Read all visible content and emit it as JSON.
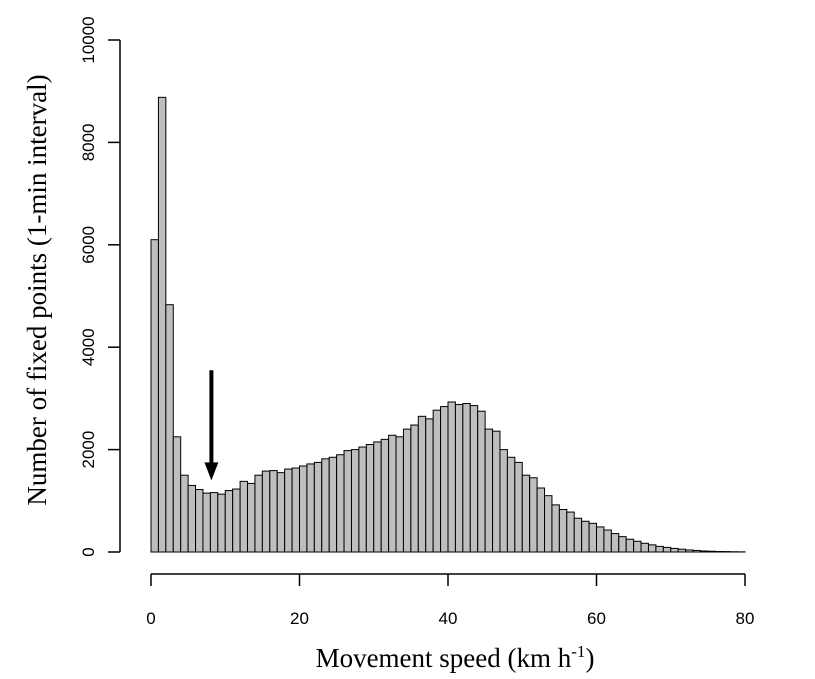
{
  "chart_data": {
    "type": "bar",
    "subtype": "histogram",
    "xlabel_main": "Movement speed (km h",
    "xlabel_sup": "-1",
    "xlabel_end": ")",
    "ylabel": "Number of fixed points (1-min interval)",
    "xlim": [
      0,
      80
    ],
    "ylim": [
      0,
      10000
    ],
    "xticks": [
      0,
      20,
      40,
      60,
      80
    ],
    "yticks": [
      0,
      2000,
      4000,
      6000,
      8000,
      10000
    ],
    "grid": false,
    "legend": "none",
    "bar_color": "#bebebe",
    "bin_width": 1,
    "bin_start": 0,
    "values": [
      6100,
      8880,
      4830,
      2250,
      1500,
      1300,
      1220,
      1150,
      1160,
      1130,
      1200,
      1230,
      1380,
      1340,
      1500,
      1580,
      1590,
      1550,
      1620,
      1640,
      1680,
      1720,
      1750,
      1820,
      1850,
      1900,
      1980,
      2000,
      2050,
      2100,
      2150,
      2200,
      2280,
      2250,
      2400,
      2480,
      2650,
      2600,
      2770,
      2840,
      2930,
      2880,
      2900,
      2860,
      2750,
      2400,
      2360,
      2000,
      1850,
      1750,
      1500,
      1450,
      1250,
      1100,
      920,
      830,
      780,
      660,
      600,
      560,
      490,
      430,
      360,
      300,
      250,
      210,
      170,
      140,
      110,
      90,
      70,
      55,
      40,
      30,
      20,
      15,
      10,
      8,
      5,
      3
    ],
    "annotation": {
      "type": "arrow",
      "x": 8,
      "y_top": 3550,
      "y_tip": 1400
    }
  }
}
